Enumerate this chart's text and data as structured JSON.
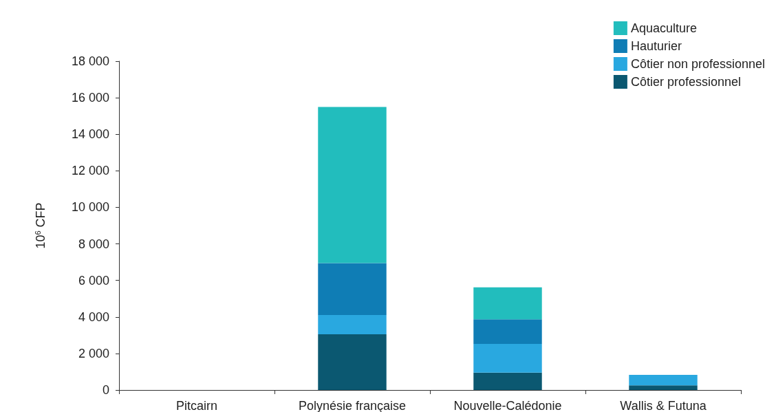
{
  "chart_data": {
    "type": "bar",
    "stacked": true,
    "ylabel": "10$^{6}$ CFP",
    "categories": [
      "Pitcairn",
      "Polynésie française",
      "Nouvelle-Calédonie",
      "Wallis & Futuna"
    ],
    "series": [
      {
        "name": "Côtier professionnel",
        "color": "#0b5871",
        "values": [
          0,
          3050,
          950,
          250
        ]
      },
      {
        "name": "Côtier non professionnel",
        "color": "#29a8e0",
        "values": [
          0,
          1050,
          1570,
          580
        ]
      },
      {
        "name": "Hauturier",
        "color": "#0f7db5",
        "values": [
          0,
          2850,
          1350,
          0
        ]
      },
      {
        "name": "Aquaculture",
        "color": "#22bdbd",
        "values": [
          0,
          8550,
          1750,
          0
        ]
      }
    ],
    "ylim": [
      0,
      18000
    ],
    "yticks": [
      0,
      {
        "value": 2000,
        "label": "2 000"
      },
      {
        "value": 4000,
        "label": "4 000"
      },
      {
        "value": 6000,
        "label": "6 000"
      },
      {
        "value": 8000,
        "label": "8 000"
      },
      {
        "value": 10000,
        "label": "10 000"
      },
      {
        "value": 12000,
        "label": "12 000"
      },
      {
        "value": 14000,
        "label": "14 000"
      },
      {
        "value": 16000,
        "label": "16 000"
      },
      {
        "value": 18000,
        "label": "18 000"
      }
    ],
    "grid": false,
    "legend": "top right"
  }
}
